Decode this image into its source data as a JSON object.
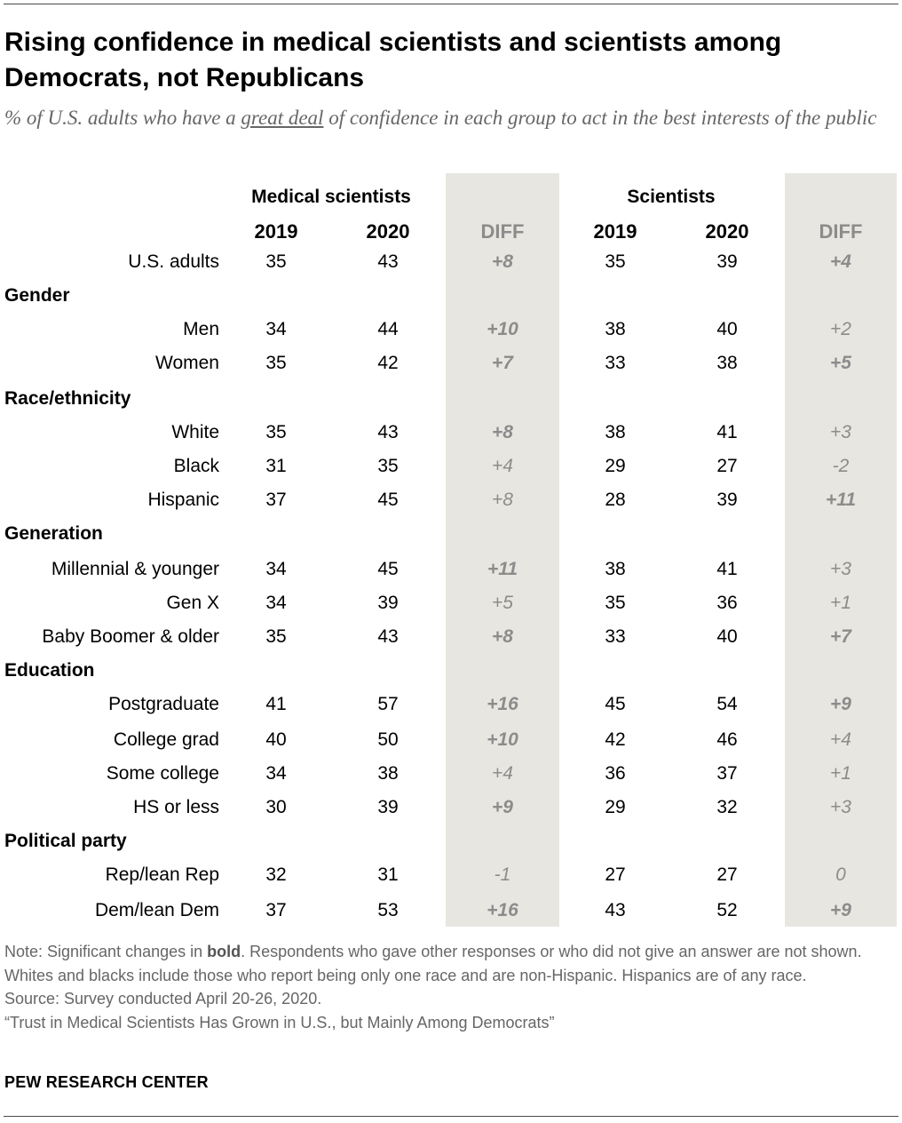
{
  "title": "Rising confidence in medical scientists and scientists among Democrats, not Republicans",
  "subtitle_pre": "% of U.S. adults who have a ",
  "subtitle_em": "great deal",
  "subtitle_post": " of confidence in each group to act in the best interests of the public",
  "groups": {
    "medical": "Medical scientists",
    "sci": "Scientists"
  },
  "years": {
    "y2019": "2019",
    "y2020": "2020",
    "diff": "DIFF"
  },
  "chart_data": {
    "type": "table",
    "columns": [
      "Medical scientists 2019",
      "Medical scientists 2020",
      "Medical scientists DIFF",
      "Scientists 2019",
      "Scientists 2020",
      "Scientists DIFF"
    ],
    "rows": [
      {
        "label": "U.S. adults",
        "section": false,
        "values": [
          "35",
          "43",
          "+8",
          "35",
          "39",
          "+4"
        ],
        "sig": [
          true,
          true
        ]
      },
      {
        "label": "Gender",
        "section": true
      },
      {
        "label": "Men",
        "section": false,
        "values": [
          "34",
          "44",
          "+10",
          "38",
          "40",
          "+2"
        ],
        "sig": [
          true,
          false
        ]
      },
      {
        "label": "Women",
        "section": false,
        "values": [
          "35",
          "42",
          "+7",
          "33",
          "38",
          "+5"
        ],
        "sig": [
          true,
          true
        ]
      },
      {
        "label": "Race/ethnicity",
        "section": true
      },
      {
        "label": "White",
        "section": false,
        "values": [
          "35",
          "43",
          "+8",
          "38",
          "41",
          "+3"
        ],
        "sig": [
          true,
          false
        ]
      },
      {
        "label": "Black",
        "section": false,
        "values": [
          "31",
          "35",
          "+4",
          "29",
          "27",
          "-2"
        ],
        "sig": [
          false,
          false
        ]
      },
      {
        "label": "Hispanic",
        "section": false,
        "values": [
          "37",
          "45",
          "+8",
          "28",
          "39",
          "+11"
        ],
        "sig": [
          false,
          true
        ]
      },
      {
        "label": "Generation",
        "section": true
      },
      {
        "label": "Millennial & younger",
        "section": false,
        "values": [
          "34",
          "45",
          "+11",
          "38",
          "41",
          "+3"
        ],
        "sig": [
          true,
          false
        ]
      },
      {
        "label": "Gen X",
        "section": false,
        "values": [
          "34",
          "39",
          "+5",
          "35",
          "36",
          "+1"
        ],
        "sig": [
          false,
          false
        ]
      },
      {
        "label": "Baby Boomer & older",
        "section": false,
        "values": [
          "35",
          "43",
          "+8",
          "33",
          "40",
          "+7"
        ],
        "sig": [
          true,
          true
        ]
      },
      {
        "label": "Education",
        "section": true
      },
      {
        "label": "Postgraduate",
        "section": false,
        "values": [
          "41",
          "57",
          "+16",
          "45",
          "54",
          "+9"
        ],
        "sig": [
          true,
          true
        ]
      },
      {
        "label": "College grad",
        "section": false,
        "values": [
          "40",
          "50",
          "+10",
          "42",
          "46",
          "+4"
        ],
        "sig": [
          true,
          false
        ]
      },
      {
        "label": "Some college",
        "section": false,
        "values": [
          "34",
          "38",
          "+4",
          "36",
          "37",
          "+1"
        ],
        "sig": [
          false,
          false
        ]
      },
      {
        "label": "HS or less",
        "section": false,
        "values": [
          "30",
          "39",
          "+9",
          "29",
          "32",
          "+3"
        ],
        "sig": [
          true,
          false
        ]
      },
      {
        "label": "Political party",
        "section": true
      },
      {
        "label": "Rep/lean Rep",
        "section": false,
        "values": [
          "32",
          "31",
          "-1",
          "27",
          "27",
          "0"
        ],
        "sig": [
          false,
          false
        ]
      },
      {
        "label": "Dem/lean Dem",
        "section": false,
        "values": [
          "37",
          "53",
          "+16",
          "43",
          "52",
          "+9"
        ],
        "sig": [
          true,
          true
        ]
      }
    ]
  },
  "notes": {
    "note_pre": "Note: Significant changes in ",
    "note_bold": "bold",
    "note_post": ". Respondents who gave other responses or who did not give an answer are not shown. Whites and blacks include those who report being only one race and are non-Hispanic. Hispanics are of any race.",
    "source": "Source: Survey conducted April 20-26, 2020.",
    "report": "“Trust in Medical Scientists Has Grown in U.S., but Mainly Among Democrats”"
  },
  "brand": "PEW RESEARCH CENTER"
}
